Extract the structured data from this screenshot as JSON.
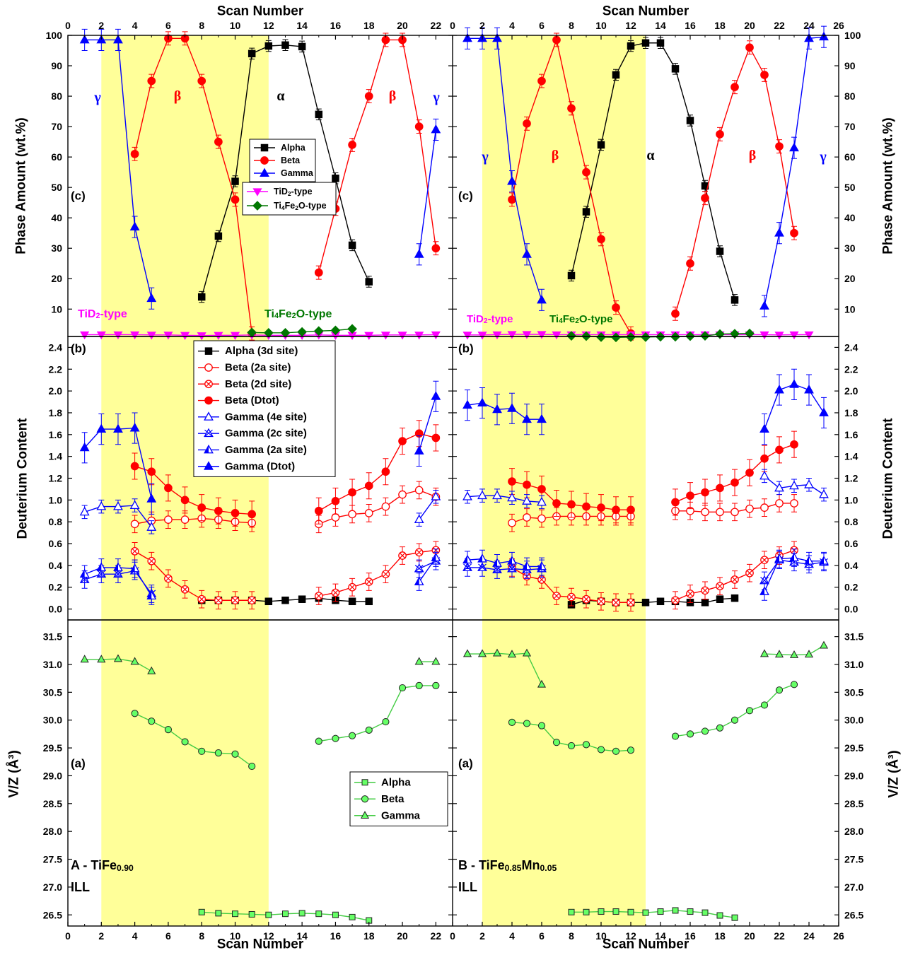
{
  "text": {
    "xlabel_top_left": "Scan Number",
    "xlabel_top_right": "Scan Number",
    "xlabel_bottom_left": "Scan Number",
    "xlabel_bottom_right": "Scan Number",
    "ylabel_c_left": "Phase Amount (wt.%)",
    "ylabel_c_right": "Phase Amount (wt.%)",
    "ylabel_b_left": "Deuterium Content",
    "ylabel_b_right": "Deuterium Content",
    "ylabel_a_left": "V/Z (Å³)",
    "ylabel_a_right": "V/Z (Å³)",
    "panel_c": "(c)",
    "panel_b": "(b)",
    "panel_a": "(a)",
    "sample_left": "A - TiFe0.90",
    "sample_right": "B - TiFe0.85Mn0.05",
    "facility": "ILL",
    "phase_alpha": "α",
    "phase_beta": "β",
    "phase_gamma": "γ",
    "tid2_label": "TiD2-type",
    "ti4fe2o_label": "Ti4Fe2O-type"
  },
  "legends": {
    "c_main": [
      "Alpha",
      "Beta",
      "Gamma"
    ],
    "c_minor": [
      "TiD2-type",
      "Ti4Fe2O-type"
    ],
    "b": [
      "Alpha (3d site)",
      "Beta (2a site)",
      "Beta (2d site)",
      "Beta (Dtot)",
      "Gamma (4e site)",
      "Gamma (2c site)",
      "Gamma (2a site)",
      "Gamma (Dtot)"
    ],
    "a": [
      "Alpha",
      "Beta",
      "Gamma"
    ]
  },
  "colors": {
    "alpha": "#000000",
    "beta": "#ff0000",
    "gamma": "#0000ff",
    "tid2": "#ff00ff",
    "ti4fe2o": "#007700",
    "volume": "#66ff66",
    "highlight": "#ffff99"
  },
  "chart_data": [
    {
      "id": "A-c",
      "type": "line",
      "xlim": [
        0,
        23
      ],
      "ylim": [
        1,
        100
      ],
      "highlight_x": [
        2,
        12
      ],
      "series": [
        {
          "name": "Alpha",
          "x": [
            8,
            9,
            10,
            11,
            12,
            13,
            14,
            15,
            16,
            17,
            18
          ],
          "y": [
            14,
            34,
            52,
            94,
            96.5,
            96.8,
            96.3,
            74,
            53,
            31,
            19
          ]
        },
        {
          "name": "Beta",
          "x": [
            4,
            5,
            6,
            7,
            8,
            9,
            10,
            11,
            15,
            16,
            17,
            18,
            19,
            20,
            21,
            22
          ],
          "y": [
            61,
            85,
            99,
            99,
            85,
            65,
            46,
            2,
            22,
            43,
            64,
            80,
            98.5,
            98.5,
            70,
            30
          ]
        },
        {
          "name": "Gamma",
          "x": [
            1,
            2,
            3,
            4,
            5,
            21,
            22
          ],
          "y": [
            98.5,
            98.5,
            98.5,
            37,
            13.5,
            28,
            69
          ]
        },
        {
          "name": "TiD2-type",
          "x": [
            1,
            2,
            3,
            4,
            5,
            6,
            7,
            8,
            9,
            10,
            11,
            12,
            13,
            14,
            15,
            16,
            17,
            18,
            19,
            20,
            21,
            22
          ],
          "y": [
            1.6,
            1.6,
            1.6,
            1.6,
            1.5,
            1.5,
            1.4,
            1.3,
            1.4,
            1.4,
            1.5,
            1.4,
            1.4,
            1.4,
            1.5,
            1.4,
            1.4,
            1.4,
            1.5,
            1.5,
            1.5,
            1.6
          ]
        },
        {
          "name": "Ti4Fe2O-type",
          "x": [
            11,
            12,
            13,
            14,
            15,
            16,
            17
          ],
          "y": [
            2.3,
            2.2,
            2.2,
            2.5,
            2.8,
            3.0,
            3.5
          ]
        }
      ]
    },
    {
      "id": "A-b",
      "type": "line",
      "xlim": [
        0,
        23
      ],
      "ylim": [
        -0.1,
        2.5
      ],
      "series": [
        {
          "name": "Alpha (3d site)",
          "x": [
            8,
            9,
            10,
            11,
            12,
            13,
            14,
            15,
            16,
            17,
            18
          ],
          "y": [
            0.08,
            0.08,
            0.08,
            0.08,
            0.07,
            0.08,
            0.09,
            0.1,
            0.08,
            0.07,
            0.07
          ]
        },
        {
          "name": "Beta (2a site)",
          "x": [
            4,
            5,
            6,
            7,
            8,
            9,
            10,
            11,
            15,
            16,
            17,
            18,
            19,
            20,
            21,
            22
          ],
          "y": [
            0.78,
            0.81,
            0.82,
            0.82,
            0.83,
            0.82,
            0.8,
            0.79,
            0.78,
            0.84,
            0.87,
            0.88,
            0.94,
            1.05,
            1.09,
            1.03
          ]
        },
        {
          "name": "Beta (2d site)",
          "x": [
            4,
            5,
            6,
            7,
            8,
            9,
            10,
            11,
            15,
            16,
            17,
            18,
            19,
            20,
            21,
            22
          ],
          "y": [
            0.53,
            0.44,
            0.28,
            0.18,
            0.09,
            0.08,
            0.08,
            0.08,
            0.12,
            0.15,
            0.2,
            0.25,
            0.32,
            0.49,
            0.52,
            0.54
          ]
        },
        {
          "name": "Beta (Dtot)",
          "x": [
            4,
            5,
            6,
            7,
            8,
            9,
            10,
            11,
            15,
            16,
            17,
            18,
            19,
            20,
            21,
            22
          ],
          "y": [
            1.31,
            1.26,
            1.11,
            1.0,
            0.93,
            0.9,
            0.88,
            0.87,
            0.9,
            0.99,
            1.07,
            1.13,
            1.26,
            1.54,
            1.61,
            1.57
          ]
        },
        {
          "name": "Gamma (4e site)",
          "x": [
            1,
            2,
            3,
            4,
            5,
            21,
            22
          ],
          "y": [
            0.89,
            0.94,
            0.94,
            0.95,
            0.75,
            0.82,
            1.03
          ]
        },
        {
          "name": "Gamma (2c site)",
          "x": [
            1,
            2,
            3,
            4,
            5,
            21,
            22
          ],
          "y": [
            0.27,
            0.32,
            0.32,
            0.35,
            0.14,
            0.37,
            0.44
          ]
        },
        {
          "name": "Gamma (2a site)",
          "x": [
            1,
            2,
            3,
            4,
            5,
            21,
            22
          ],
          "y": [
            0.32,
            0.38,
            0.38,
            0.37,
            0.12,
            0.25,
            0.47
          ]
        },
        {
          "name": "Gamma (Dtot)",
          "x": [
            1,
            2,
            3,
            4,
            5,
            21,
            22
          ],
          "y": [
            1.48,
            1.65,
            1.65,
            1.66,
            1.01,
            1.45,
            1.95
          ]
        }
      ]
    },
    {
      "id": "A-a",
      "type": "line",
      "xlim": [
        0,
        23
      ],
      "ylim": [
        26.3,
        31.8
      ],
      "series": [
        {
          "name": "Alpha",
          "x": [
            8,
            9,
            10,
            11,
            12,
            13,
            14,
            15,
            16,
            17,
            18
          ],
          "y": [
            26.55,
            26.53,
            26.52,
            26.51,
            26.5,
            26.52,
            26.53,
            26.52,
            26.5,
            26.46,
            26.4
          ]
        },
        {
          "name": "Beta",
          "x": [
            4,
            5,
            6,
            7,
            8,
            9,
            10,
            11,
            15,
            16,
            17,
            18,
            19,
            20,
            21,
            22
          ],
          "y": [
            30.12,
            29.98,
            29.83,
            29.61,
            29.44,
            29.41,
            29.39,
            29.17,
            29.62,
            29.67,
            29.72,
            29.82,
            29.97,
            30.58,
            30.62,
            30.62
          ]
        },
        {
          "name": "Gamma",
          "x": [
            1,
            2,
            3,
            4,
            5,
            21,
            22
          ],
          "y": [
            31.09,
            31.09,
            31.1,
            31.05,
            30.88,
            31.05,
            31.05
          ]
        }
      ]
    },
    {
      "id": "B-c",
      "type": "line",
      "xlim": [
        0,
        26
      ],
      "ylim": [
        1,
        100
      ],
      "highlight_x": [
        2,
        13
      ],
      "series": [
        {
          "name": "Alpha",
          "x": [
            8,
            9,
            10,
            11,
            12,
            13,
            14,
            15,
            16,
            17,
            18,
            19
          ],
          "y": [
            21,
            42,
            64,
            87,
            96.5,
            97.5,
            97.5,
            89,
            72,
            50.5,
            29,
            13
          ]
        },
        {
          "name": "Beta",
          "x": [
            4,
            5,
            6,
            7,
            8,
            9,
            10,
            11,
            12,
            15,
            16,
            17,
            18,
            19,
            20,
            21,
            22,
            23
          ],
          "y": [
            46,
            71,
            85,
            98.5,
            76,
            55,
            33,
            10.5,
            2,
            8.5,
            25,
            46.5,
            67.5,
            83,
            96,
            87,
            63.5,
            35
          ]
        },
        {
          "name": "Gamma",
          "x": [
            1,
            2,
            3,
            4,
            5,
            6,
            21,
            22,
            23,
            24,
            25
          ],
          "y": [
            99,
            99,
            99,
            52,
            28,
            13,
            11,
            35,
            63,
            99,
            99.5
          ]
        },
        {
          "name": "TiD2-type",
          "x": [
            1,
            2,
            3,
            4,
            5,
            6,
            7,
            8,
            9,
            10,
            11,
            12,
            13,
            14,
            15,
            16,
            17,
            18,
            19,
            20,
            21,
            22,
            23,
            24
          ],
          "y": [
            1.5,
            1.5,
            1.6,
            1.7,
            1.7,
            1.7,
            1.6,
            1.6,
            1.6,
            1.6,
            1.6,
            1.6,
            1.6,
            1.6,
            1.6,
            1.6,
            1.6,
            1.6,
            1.6,
            1.6,
            1.6,
            1.5,
            1.6,
            1.6
          ]
        },
        {
          "name": "Ti4Fe2O-type",
          "x": [
            8,
            9,
            10,
            11,
            12,
            13,
            14,
            15,
            16,
            17,
            18,
            19,
            20
          ],
          "y": [
            1.2,
            1.1,
            0.8,
            0.7,
            0.8,
            0.8,
            0.9,
            0.9,
            1.1,
            1.2,
            1.8,
            1.9,
            2.0
          ]
        }
      ]
    },
    {
      "id": "B-b",
      "type": "line",
      "xlim": [
        0,
        26
      ],
      "ylim": [
        -0.1,
        2.5
      ],
      "series": [
        {
          "name": "Alpha (3d site)",
          "x": [
            8,
            9,
            10,
            11,
            12,
            13,
            14,
            15,
            16,
            17,
            18,
            19
          ],
          "y": [
            0.04,
            0.08,
            0.07,
            0.06,
            0.06,
            0.06,
            0.07,
            0.07,
            0.06,
            0.06,
            0.09,
            0.1
          ]
        },
        {
          "name": "Beta (2a site)",
          "x": [
            4,
            5,
            6,
            7,
            8,
            9,
            10,
            11,
            12,
            15,
            16,
            17,
            18,
            19,
            20,
            21,
            22,
            23
          ],
          "y": [
            0.79,
            0.84,
            0.83,
            0.85,
            0.85,
            0.85,
            0.85,
            0.85,
            0.85,
            0.9,
            0.9,
            0.89,
            0.89,
            0.89,
            0.92,
            0.93,
            0.97,
            0.97
          ]
        },
        {
          "name": "Beta (2d site)",
          "x": [
            4,
            5,
            6,
            7,
            8,
            9,
            10,
            11,
            12,
            15,
            16,
            17,
            18,
            19,
            20,
            21,
            22,
            23
          ],
          "y": [
            0.38,
            0.3,
            0.27,
            0.12,
            0.11,
            0.09,
            0.07,
            0.06,
            0.06,
            0.08,
            0.14,
            0.17,
            0.21,
            0.27,
            0.33,
            0.45,
            0.49,
            0.54
          ]
        },
        {
          "name": "Beta (Dtot)",
          "x": [
            4,
            5,
            6,
            7,
            8,
            9,
            10,
            11,
            12,
            15,
            16,
            17,
            18,
            19,
            20,
            21,
            22,
            23
          ],
          "y": [
            1.17,
            1.14,
            1.1,
            0.97,
            0.96,
            0.94,
            0.93,
            0.91,
            0.91,
            0.98,
            1.04,
            1.07,
            1.11,
            1.16,
            1.25,
            1.38,
            1.46,
            1.51
          ]
        },
        {
          "name": "Gamma (4e site)",
          "x": [
            1,
            2,
            3,
            4,
            5,
            6,
            21,
            22,
            23,
            24,
            25
          ],
          "y": [
            1.03,
            1.04,
            1.04,
            1.02,
            0.99,
            0.98,
            1.22,
            1.11,
            1.13,
            1.14,
            1.05
          ]
        },
        {
          "name": "Gamma (2c site)",
          "x": [
            1,
            2,
            3,
            4,
            5,
            6,
            21,
            22,
            23,
            24,
            25
          ],
          "y": [
            0.38,
            0.38,
            0.36,
            0.37,
            0.36,
            0.37,
            0.26,
            0.45,
            0.43,
            0.41,
            0.43
          ]
        },
        {
          "name": "Gamma (2a site)",
          "x": [
            1,
            2,
            3,
            4,
            5,
            6,
            21,
            22,
            23,
            24,
            25
          ],
          "y": [
            0.45,
            0.46,
            0.42,
            0.44,
            0.39,
            0.39,
            0.16,
            0.46,
            0.47,
            0.44,
            0.44
          ]
        },
        {
          "name": "Gamma (Dtot)",
          "x": [
            1,
            2,
            3,
            4,
            5,
            6,
            21,
            22,
            23,
            24,
            25
          ],
          "y": [
            1.87,
            1.89,
            1.83,
            1.84,
            1.74,
            1.74,
            1.65,
            2.01,
            2.06,
            2.01,
            1.8
          ]
        }
      ]
    },
    {
      "id": "B-a",
      "type": "line",
      "xlim": [
        0,
        26
      ],
      "ylim": [
        26.3,
        31.8
      ],
      "series": [
        {
          "name": "Alpha",
          "x": [
            8,
            9,
            10,
            11,
            12,
            13,
            14,
            15,
            16,
            17,
            18,
            19
          ],
          "y": [
            26.55,
            26.55,
            26.56,
            26.56,
            26.55,
            26.54,
            26.56,
            26.58,
            26.56,
            26.54,
            26.49,
            26.45
          ]
        },
        {
          "name": "Beta",
          "x": [
            4,
            5,
            6,
            7,
            8,
            9,
            10,
            11,
            12,
            15,
            16,
            17,
            18,
            19,
            20,
            21,
            22,
            23
          ],
          "y": [
            29.96,
            29.94,
            29.9,
            29.6,
            29.54,
            29.56,
            29.47,
            29.44,
            29.46,
            29.71,
            29.75,
            29.8,
            29.86,
            30.0,
            30.17,
            30.27,
            30.54,
            30.64
          ]
        },
        {
          "name": "Gamma",
          "x": [
            1,
            2,
            3,
            4,
            5,
            6,
            21,
            22,
            23,
            24,
            25
          ],
          "y": [
            31.19,
            31.19,
            31.2,
            31.18,
            31.2,
            30.64,
            31.19,
            31.18,
            31.17,
            31.18,
            31.34
          ]
        }
      ]
    }
  ]
}
